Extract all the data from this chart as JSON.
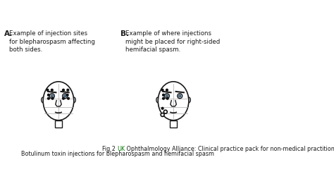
{
  "bg_color": "#ffffff",
  "label_A": "A.",
  "label_B": "B.",
  "text_A": "Example of injection sites\nfor blepharospasm affecting\nboth sides.",
  "text_B": "Example of where injections\nmight be placed for right-sided\nhemifacial spasm.",
  "caption_line1": "Fig 2 ",
  "caption_uk": "UK",
  "caption_rest": " Ophthalmology Alliance: Clinical practice pack for non-medical practitioners:",
  "caption_line2": "Botulinum toxin injections for blepharospasm and hemifacial spasm",
  "text_color": "#1a1a1a",
  "green_color": "#007700",
  "face_color": "#ffffff",
  "face_edge": "#1a1a1a",
  "dot_color": "#111111",
  "circle_color": "#111111"
}
